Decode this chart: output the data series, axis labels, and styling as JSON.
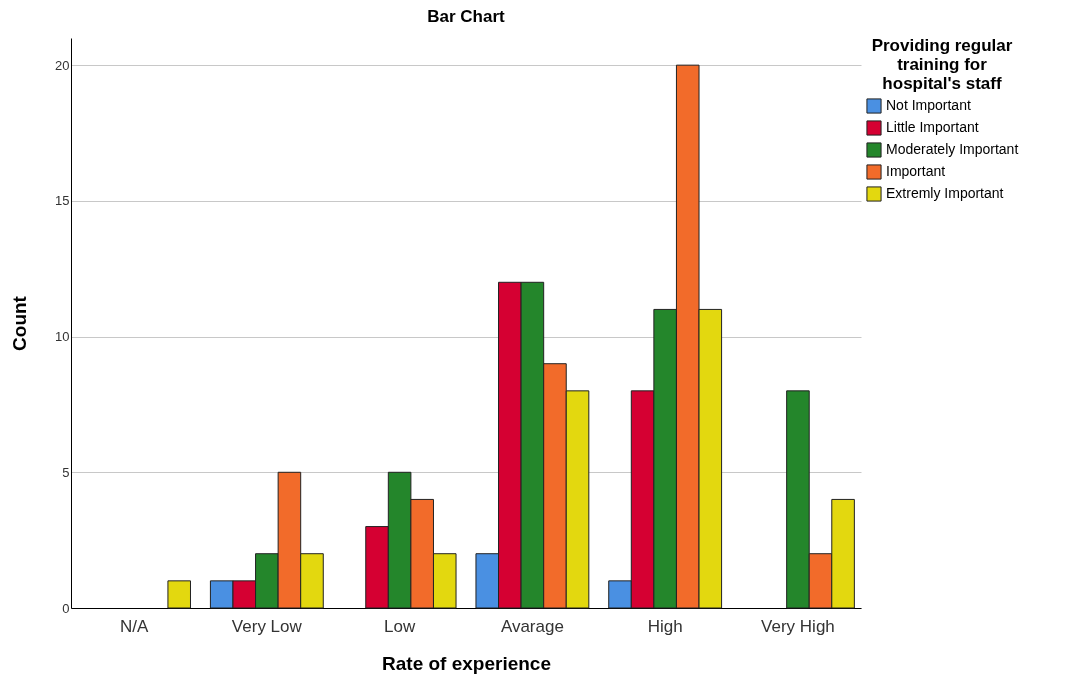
{
  "chart_data": {
    "type": "bar",
    "title": "Bar Chart",
    "xlabel": "Rate of experience",
    "ylabel": "Count",
    "legend_title": "Providing regular training for hospital's staff",
    "categories": [
      "N/A",
      "Very Low",
      "Low",
      "Avarage",
      "High",
      "Very High"
    ],
    "series": [
      {
        "name": "Not Important",
        "color": "#4a90e2",
        "values": [
          null,
          1,
          null,
          2,
          1,
          null
        ]
      },
      {
        "name": "Little Important",
        "color": "#d50032",
        "values": [
          null,
          1,
          3,
          12,
          8,
          null
        ]
      },
      {
        "name": "Moderately Important",
        "color": "#24862b",
        "values": [
          null,
          2,
          5,
          12,
          11,
          8
        ]
      },
      {
        "name": "Important",
        "color": "#f26b2a",
        "values": [
          null,
          5,
          4,
          9,
          20,
          2
        ]
      },
      {
        "name": "Extremly Important",
        "color": "#e3d80f",
        "values": [
          1,
          2,
          2,
          8,
          11,
          4
        ]
      }
    ],
    "ylim": [
      0,
      21
    ],
    "yticks": [
      0,
      5,
      10,
      15,
      20
    ],
    "grid": "y",
    "legend": "top right"
  }
}
